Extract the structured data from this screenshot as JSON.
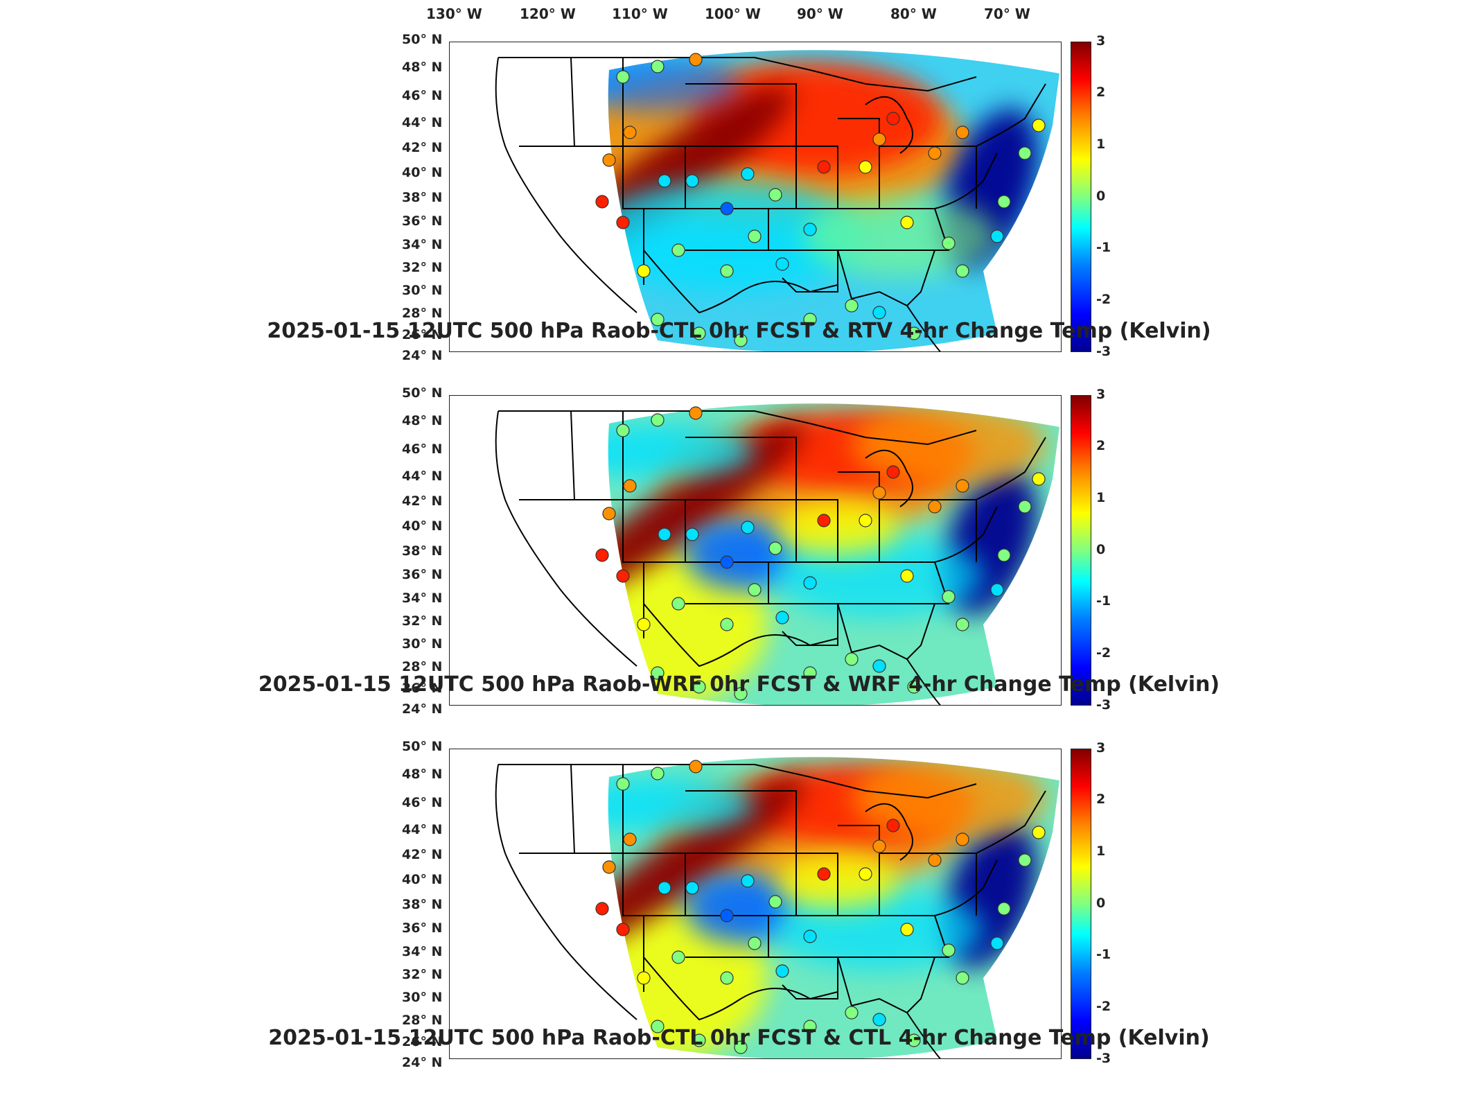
{
  "lon_labels": [
    "130° W",
    "120° W",
    "110° W",
    "100° W",
    "90° W",
    "80° W",
    "70° W"
  ],
  "lat_labels": [
    "50° N",
    "48° N",
    "46° N",
    "44° N",
    "42° N",
    "40° N",
    "38° N",
    "36° N",
    "34° N",
    "32° N",
    "30° N",
    "28° N",
    "26° N",
    "24° N"
  ],
  "colorbar_ticks": [
    "3",
    "2",
    "1",
    "0",
    "-1",
    "-2",
    "-3"
  ],
  "colors": {
    "dark_red": "#8b0000",
    "red": "#ff2000",
    "orange": "#ff9000",
    "yellow": "#ffff00",
    "green": "#80ff80",
    "cyan": "#00e0ff",
    "blue": "#0060ff",
    "dark_blue": "#000090"
  },
  "panels": [
    {
      "title": "2025-01-15 12UTC 500 hPa Raob-CTL 0hr FCST & RTV 4-hr Change Temp (Kelvin)"
    },
    {
      "title": "2025-01-15 12UTC 500 hPa Raob-WRF 0hr FCST & WRF 4-hr Change Temp (Kelvin)"
    },
    {
      "title": "2025-01-15 12UTC 500 hPa Raob-CTL 0hr FCST & CTL 4-hr Change Temp (Kelvin)"
    }
  ]
}
